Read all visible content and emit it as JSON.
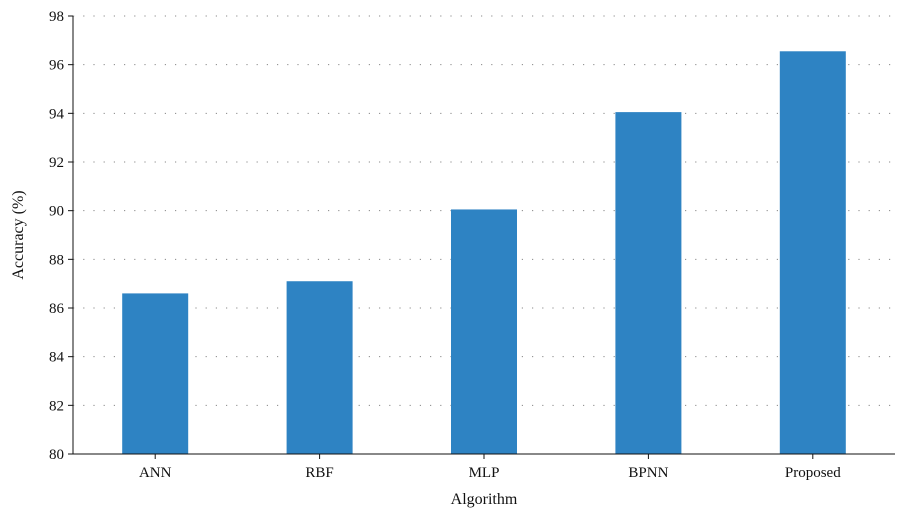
{
  "chart_data": {
    "type": "bar",
    "categories": [
      "ANN",
      "RBF",
      "MLP",
      "BPNN",
      "Proposed"
    ],
    "series": [
      {
        "values": [
          86.6,
          87.1,
          90.05,
          94.05,
          96.55
        ]
      }
    ],
    "xlabel": "Algorithm",
    "ylabel": "Accuracy (%)",
    "ylim": [
      80,
      98
    ],
    "yticks": [
      "80",
      "82",
      "84",
      "86",
      "88",
      "90",
      "92",
      "94",
      "96",
      "98"
    ],
    "grid": "horizontal dotted",
    "bar_color": "#2e83c3"
  }
}
